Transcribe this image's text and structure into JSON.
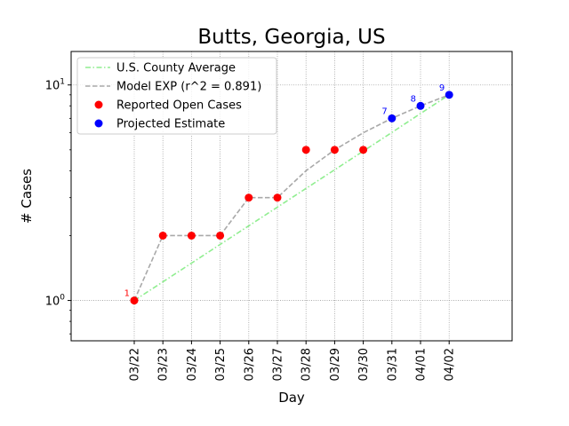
{
  "chart_data": {
    "type": "line",
    "title": "Butts, Georgia, US",
    "xlabel": "Day",
    "ylabel": "# Cases",
    "yscale": "log",
    "ylim": [
      0.65,
      14.3
    ],
    "y_ticks": [
      {
        "value": 1,
        "base": "10",
        "exp": "0"
      },
      {
        "value": 10,
        "base": "10",
        "exp": "1"
      }
    ],
    "grid": true,
    "legend_position": "top-left",
    "categories": [
      "03/22",
      "03/23",
      "03/24",
      "03/25",
      "03/26",
      "03/27",
      "03/28",
      "03/29",
      "03/30",
      "03/31",
      "04/01",
      "04/02"
    ],
    "series": [
      {
        "name": "U.S. County Average",
        "style": "dash-dot",
        "color": "#90ee90",
        "values": [
          1.0,
          1.22,
          1.49,
          1.82,
          2.22,
          2.71,
          3.31,
          4.04,
          4.93,
          6.02,
          7.37,
          9.0
        ]
      },
      {
        "name": "Model EXP (r^2 = 0.891)",
        "style": "dashed",
        "color": "#a9a9a9",
        "values": [
          1,
          2,
          2,
          2,
          3,
          3,
          4,
          5,
          6,
          7,
          8,
          9
        ]
      },
      {
        "name": "Reported Open Cases",
        "style": "marker",
        "color": "#ff0000",
        "values": [
          1,
          2,
          2,
          2,
          3,
          3,
          5,
          5,
          5,
          null,
          null,
          null
        ]
      },
      {
        "name": "Projected Estimate",
        "style": "marker",
        "color": "#0000ff",
        "values": [
          null,
          null,
          null,
          null,
          null,
          null,
          null,
          null,
          null,
          7,
          8,
          9
        ]
      }
    ],
    "point_labels": [
      {
        "index": 0,
        "text": "1",
        "color": "#ff0000"
      },
      {
        "index": 9,
        "text": "7",
        "color": "#0000ff"
      },
      {
        "index": 10,
        "text": "8",
        "color": "#0000ff"
      },
      {
        "index": 11,
        "text": "9",
        "color": "#0000ff"
      }
    ]
  }
}
